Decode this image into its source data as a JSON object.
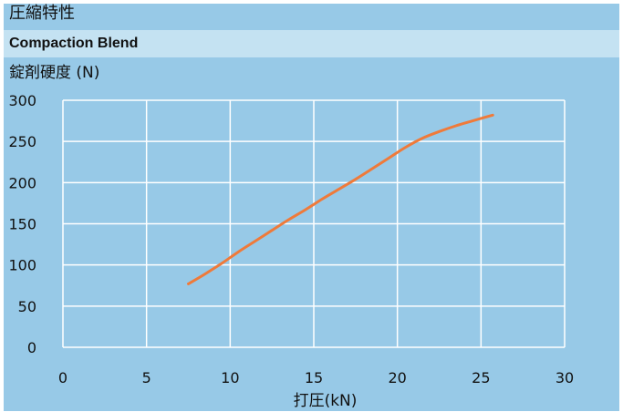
{
  "title": "圧縮特性",
  "subtitle": "Compaction Blend",
  "colors": {
    "background": "#97c9e7",
    "band": "#c4e2f2",
    "grid": "#ffffff",
    "line": "#ef7a3a"
  },
  "chart_data": {
    "type": "line",
    "ylabel": "錠剤硬度 (N)",
    "xlabel": "打圧(kN)",
    "xlim": [
      0,
      30
    ],
    "ylim": [
      0,
      300
    ],
    "xticks": [
      0,
      5,
      10,
      15,
      20,
      25,
      30
    ],
    "yticks": [
      0,
      50,
      100,
      150,
      200,
      250,
      300
    ],
    "grid": true,
    "series": [
      {
        "x": [
          7.5,
          8.5,
          9.5,
          10.5,
          11.5,
          12.5,
          13.5,
          14.5,
          15.5,
          16.5,
          17.5,
          18.5,
          19.5,
          20.5,
          21.5,
          22.5,
          23.5,
          24.5,
          25.7
        ],
        "y": [
          77,
          89,
          102,
          116,
          129,
          142,
          155,
          167,
          180,
          192,
          204,
          217,
          230,
          243,
          254,
          262,
          269,
          275,
          282
        ]
      }
    ]
  }
}
